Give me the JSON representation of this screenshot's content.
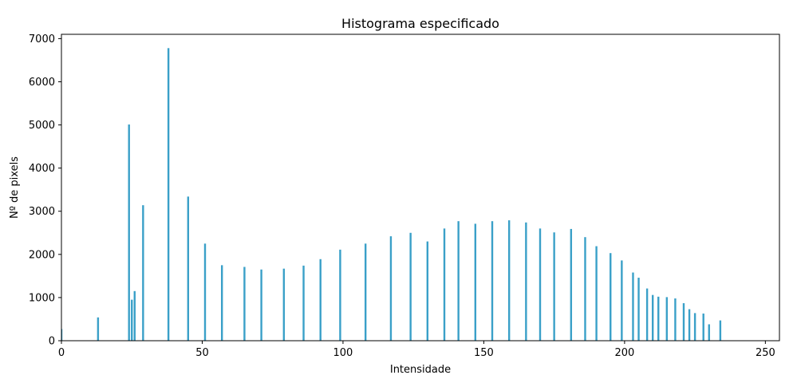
{
  "chart_data": {
    "type": "bar",
    "title": "Histograma especificado",
    "xlabel": "Intensidade",
    "ylabel": "Nº de pixels",
    "xlim": [
      0,
      255
    ],
    "ylim": [
      0,
      7100
    ],
    "xticks": [
      0,
      50,
      100,
      150,
      200,
      250
    ],
    "yticks": [
      0,
      1000,
      2000,
      3000,
      4000,
      5000,
      6000,
      7000
    ],
    "grid": false,
    "bar_color": "#3aa0c8",
    "x": [
      0,
      13,
      24,
      25,
      26,
      29,
      38,
      45,
      51,
      57,
      65,
      71,
      79,
      86,
      92,
      99,
      108,
      117,
      124,
      130,
      136,
      141,
      147,
      153,
      159,
      165,
      170,
      175,
      181,
      186,
      190,
      195,
      199,
      203,
      205,
      208,
      210,
      212,
      215,
      218,
      221,
      223,
      225,
      228,
      230,
      234
    ],
    "values": [
      270,
      540,
      5010,
      950,
      1150,
      3140,
      6780,
      3340,
      2250,
      1750,
      1710,
      1650,
      1670,
      1740,
      1890,
      2110,
      2250,
      2420,
      2500,
      2300,
      2600,
      2770,
      2710,
      2770,
      2790,
      2740,
      2600,
      2510,
      2590,
      2400,
      2190,
      2030,
      1860,
      1580,
      1460,
      1210,
      1060,
      1020,
      1010,
      980,
      870,
      730,
      640,
      630,
      380,
      470
    ]
  }
}
